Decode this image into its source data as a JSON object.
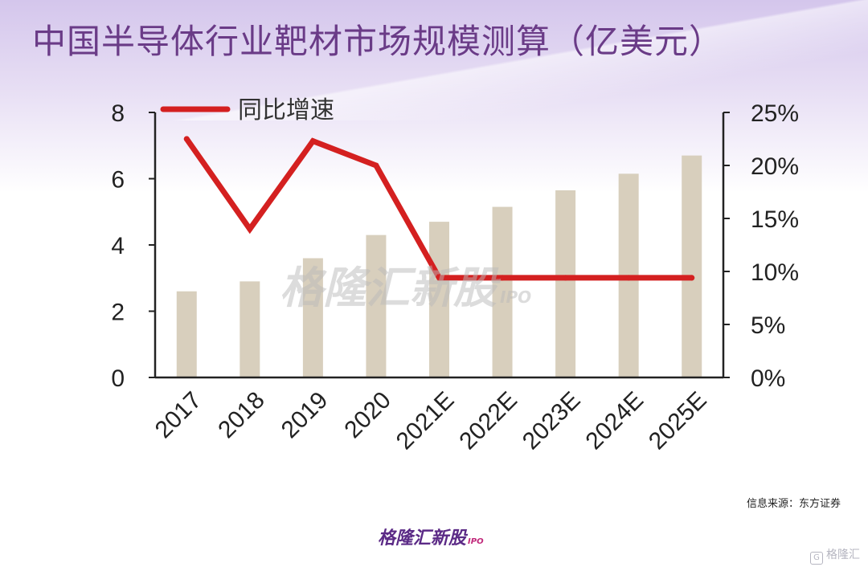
{
  "title": "中国半导体行业靶材市场规模测算（亿美元）",
  "source": "信息来源：东方证券",
  "logo": {
    "text": "格隆汇新股",
    "suffix": "IPO"
  },
  "watermark": {
    "text": "格隆汇新股",
    "suffix": "IPO"
  },
  "corner_watermark": {
    "icon": "G",
    "text": "格隆汇"
  },
  "chart_data": {
    "type": "bar",
    "categories": [
      "2017",
      "2018",
      "2019",
      "2020",
      "2021E",
      "2022E",
      "2023E",
      "2024E",
      "2025E"
    ],
    "series": [
      {
        "values": [
          2.6,
          2.9,
          3.6,
          4.3,
          4.7,
          5.15,
          5.65,
          6.15,
          6.7
        ],
        "axis": "left",
        "kind": "bar",
        "color": "#d8cfbd"
      },
      {
        "name": "同比增速",
        "values": [
          22.5,
          14.0,
          22.3,
          20.0,
          9.4,
          9.4,
          9.4,
          9.4,
          9.4
        ],
        "axis": "right",
        "kind": "line",
        "color": "#d42020"
      }
    ],
    "y_left": {
      "min": 0,
      "max": 8,
      "ticks": [
        "0",
        "2",
        "4",
        "6",
        "8"
      ]
    },
    "y_right": {
      "min": 0,
      "max": 25,
      "ticks": [
        "0%",
        "5%",
        "10%",
        "15%",
        "20%",
        "25%"
      ]
    },
    "legend": {
      "position": "top-left",
      "label": "同比增速"
    },
    "grid": false
  }
}
